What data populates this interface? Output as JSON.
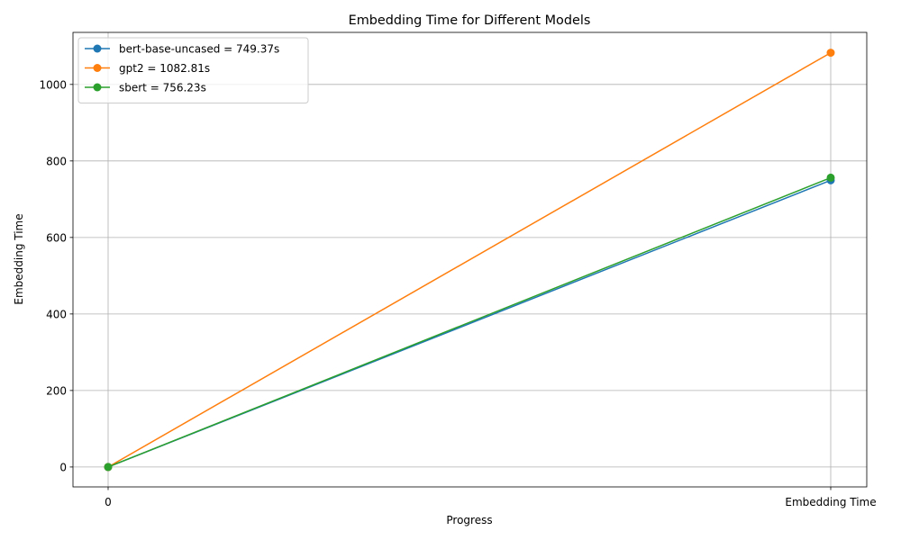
{
  "chart_data": {
    "type": "line",
    "title": "Embedding Time for Different Models",
    "xlabel": "Progress",
    "ylabel": "Embedding Time",
    "categories": [
      "0",
      "Embedding Time"
    ],
    "ylim": [
      -52,
      1136
    ],
    "yticks": [
      0,
      200,
      400,
      600,
      800,
      1000
    ],
    "grid": true,
    "legend_position": "top-left",
    "series": [
      {
        "name": "bert-base-uncased = 749.37s",
        "values": [
          0,
          749.37
        ],
        "color": "#1f77b4"
      },
      {
        "name": "gpt2 = 1082.81s",
        "values": [
          0,
          1082.81
        ],
        "color": "#ff7f0e"
      },
      {
        "name": "sbert = 756.23s",
        "values": [
          0,
          756.23
        ],
        "color": "#2ca02c"
      }
    ]
  }
}
